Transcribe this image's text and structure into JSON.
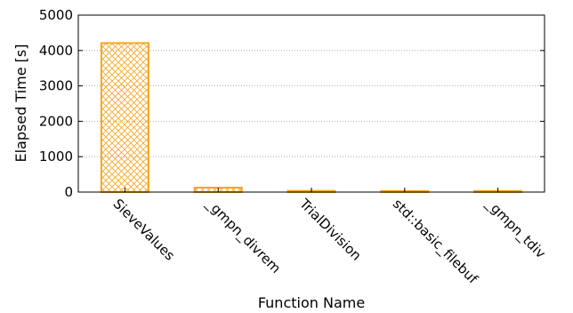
{
  "chart_data": {
    "type": "bar",
    "categories": [
      "SieveValues",
      "_gmpn_divrem",
      "TrialDivision",
      "std::basic_filebuf",
      "_gmpn_tdiv"
    ],
    "values": [
      4210,
      125,
      35,
      30,
      30
    ],
    "xlabel": "Function Name",
    "ylabel": "Elapsed Time [s]",
    "ylim": [
      0,
      5000
    ],
    "yticks": [
      0,
      1000,
      2000,
      3000,
      4000,
      5000
    ],
    "grid": true,
    "bar_color": "#f5a623",
    "bar_fill_pattern": "crosshatch"
  }
}
